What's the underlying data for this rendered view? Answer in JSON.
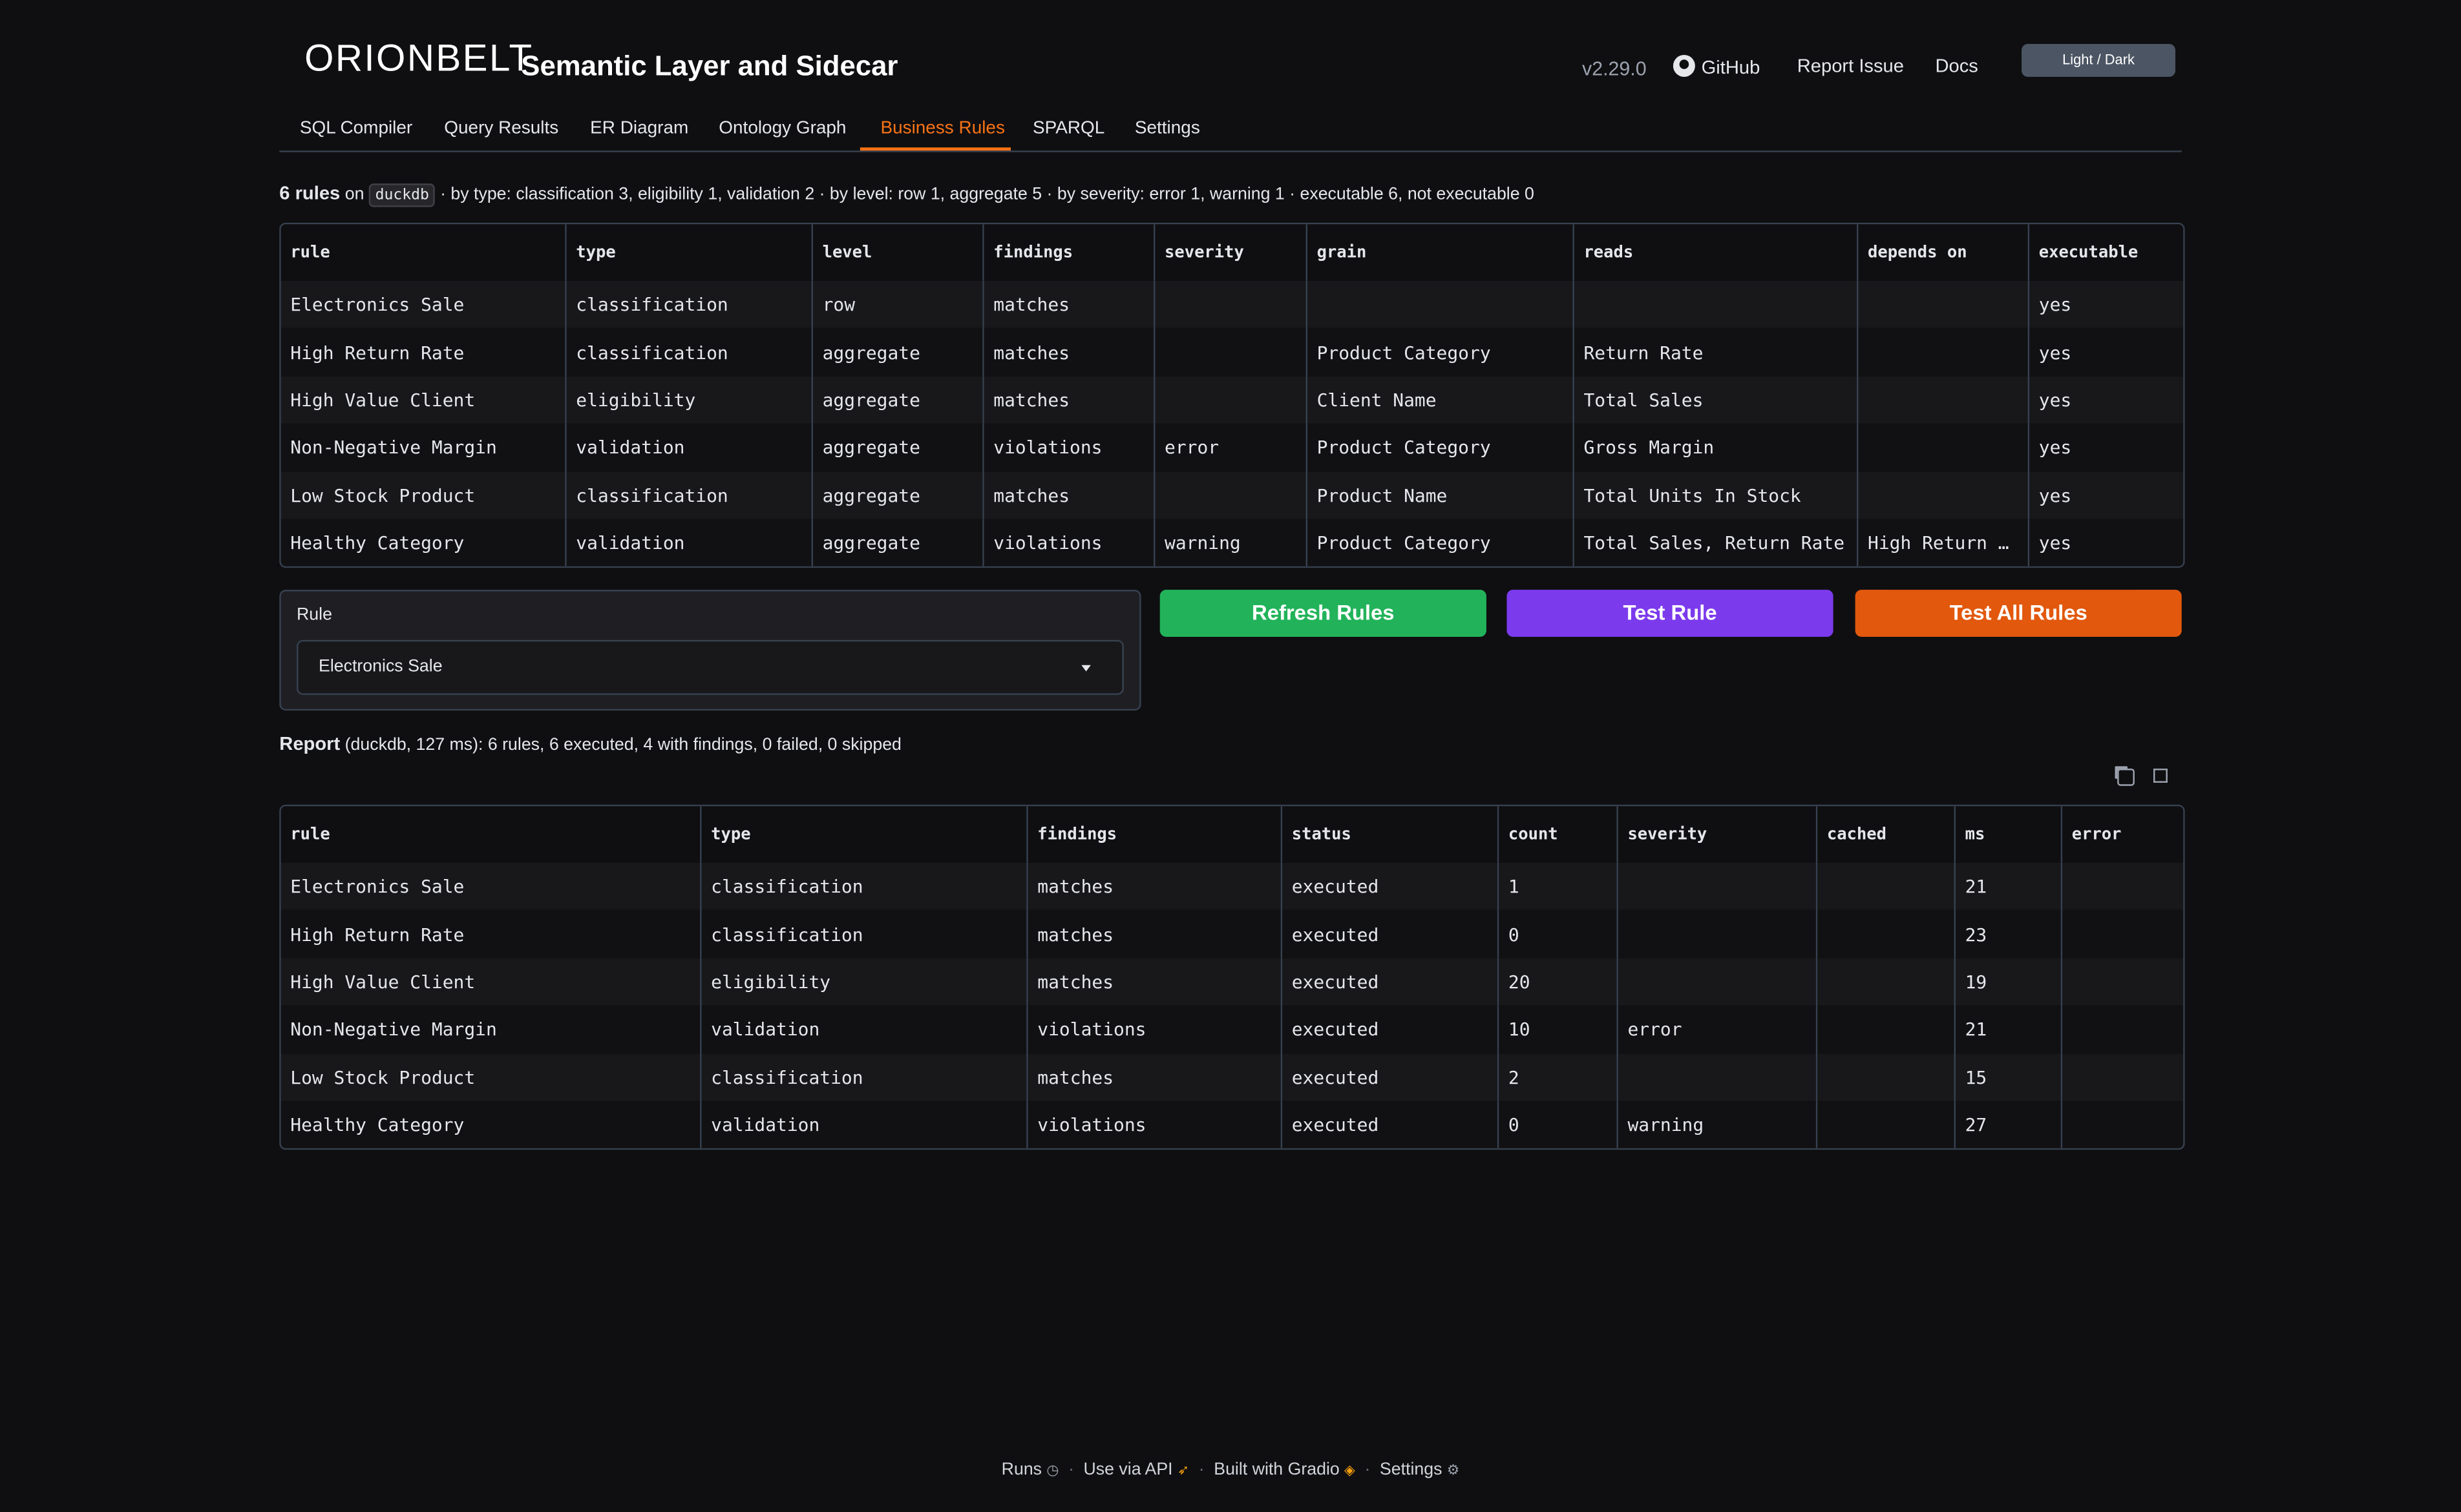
{
  "header": {
    "logo": "ORIONBELT",
    "title": "Semantic Layer and Sidecar",
    "version": "v2.29.0",
    "github": "GitHub",
    "report_issue": "Report Issue",
    "docs": "Docs",
    "theme_toggle": "Light / Dark"
  },
  "tabs": [
    {
      "label": "SQL Compiler"
    },
    {
      "label": "Query Results"
    },
    {
      "label": "ER Diagram"
    },
    {
      "label": "Ontology Graph"
    },
    {
      "label": "Business Rules",
      "active": true
    },
    {
      "label": "SPARQL"
    },
    {
      "label": "Settings"
    }
  ],
  "summary": {
    "count": "6 rules",
    "on": " on ",
    "engine": "duckdb",
    "details": " · by type: classification 3, eligibility 1, validation 2 · by level: row 1, aggregate 5 · by severity: error 1, warning 1 · executable 6, not executable 0"
  },
  "rules_table": {
    "columns": [
      "rule",
      "type",
      "level",
      "findings",
      "severity",
      "grain",
      "reads",
      "depends on",
      "executable"
    ],
    "rows": [
      [
        "Electronics Sale",
        "classification",
        "row",
        "matches",
        "",
        "",
        "",
        "",
        "yes"
      ],
      [
        "High Return Rate",
        "classification",
        "aggregate",
        "matches",
        "",
        "Product Category",
        "Return Rate",
        "",
        "yes"
      ],
      [
        "High Value Client",
        "eligibility",
        "aggregate",
        "matches",
        "",
        "Client Name",
        "Total Sales",
        "",
        "yes"
      ],
      [
        "Non-Negative Margin",
        "validation",
        "aggregate",
        "violations",
        "error",
        "Product Category",
        "Gross Margin",
        "",
        "yes"
      ],
      [
        "Low Stock Product",
        "classification",
        "aggregate",
        "matches",
        "",
        "Product Name",
        "Total Units In Stock",
        "",
        "yes"
      ],
      [
        "Healthy Category",
        "validation",
        "aggregate",
        "violations",
        "warning",
        "Product Category",
        "Total Sales, Return Rate",
        "High Return …",
        "yes"
      ]
    ]
  },
  "rule_selector": {
    "label": "Rule",
    "value": "Electronics Sale"
  },
  "buttons": {
    "refresh": "Refresh Rules",
    "test": "Test Rule",
    "test_all": "Test All Rules"
  },
  "colors": {
    "refresh": "#22b35a",
    "test": "#7c3aed",
    "test_all": "#e2580d",
    "accent": "#f97316"
  },
  "report": {
    "label": "Report",
    "details": " (duckdb, 127 ms): 6 rules, 6 executed, 4 with findings, 0 failed, 0 skipped"
  },
  "report_table": {
    "columns": [
      "rule",
      "type",
      "findings",
      "status",
      "count",
      "severity",
      "cached",
      "ms",
      "error"
    ],
    "rows": [
      [
        "Electronics Sale",
        "classification",
        "matches",
        "executed",
        "1",
        "",
        "",
        "21",
        ""
      ],
      [
        "High Return Rate",
        "classification",
        "matches",
        "executed",
        "0",
        "",
        "",
        "23",
        ""
      ],
      [
        "High Value Client",
        "eligibility",
        "matches",
        "executed",
        "20",
        "",
        "",
        "19",
        ""
      ],
      [
        "Non-Negative Margin",
        "validation",
        "violations",
        "executed",
        "10",
        "error",
        "",
        "21",
        ""
      ],
      [
        "Low Stock Product",
        "classification",
        "matches",
        "executed",
        "2",
        "",
        "",
        "15",
        ""
      ],
      [
        "Healthy Category",
        "validation",
        "violations",
        "executed",
        "0",
        "warning",
        "",
        "27",
        ""
      ]
    ]
  },
  "footer": {
    "runs": "Runs",
    "api": "Use via API",
    "gradio": "Built with Gradio",
    "settings": "Settings"
  }
}
